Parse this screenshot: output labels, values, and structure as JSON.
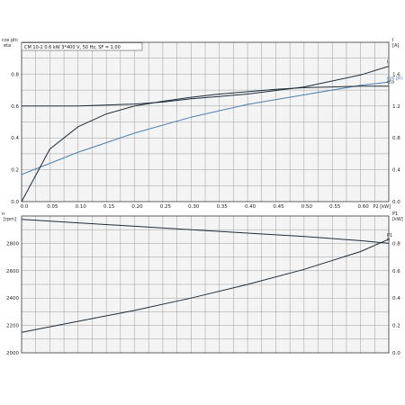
{
  "legend": "CM 10-1   0.6 kW   3*400 V, 50 Hz, SF = 1.00",
  "colors": {
    "dark": "#1f2d3a",
    "light": "#4a7fb0",
    "grid": "#9a9a9a",
    "bg": "#f4f4f4"
  },
  "chart_data": [
    {
      "type": "line",
      "xlabel": "P2 [kW]",
      "xlim": [
        0,
        0.65
      ],
      "x_ticks": [
        "0.0",
        "0.05",
        "0.10",
        "0.15",
        "0.20",
        "0.25",
        "0.30",
        "0.35",
        "0.40",
        "0.45",
        "0.50",
        "0.55",
        "0.60"
      ],
      "y_left_label": "cos phi / eta",
      "y_left_label_line1": "cos phi",
      "y_left_label_line2": "eta",
      "y_left_lim": [
        0,
        1.0
      ],
      "y_left_ticks": [
        "0.0",
        "0.2",
        "0.4",
        "0.6",
        "0.8"
      ],
      "y_right_label": "I [A]",
      "y_right_label_line1": "I",
      "y_right_label_line2": "[A]",
      "y_right_lim": [
        0,
        2.0
      ],
      "y_right_ticks": [
        "0.0",
        "0.4",
        "0.8",
        "1.2",
        "1.6"
      ],
      "grid": true,
      "series": [
        {
          "name": "I",
          "axis": "right",
          "color": "#1f2d3a",
          "x": [
            0.0,
            0.1,
            0.2,
            0.25,
            0.3,
            0.4,
            0.5,
            0.6,
            0.65
          ],
          "y": [
            1.2,
            1.2,
            1.225,
            1.25,
            1.29,
            1.35,
            1.44,
            1.59,
            1.7
          ]
        },
        {
          "name": "cos phi",
          "axis": "left",
          "color": "#4a7fb0",
          "x": [
            0.0,
            0.1,
            0.2,
            0.3,
            0.4,
            0.5,
            0.6,
            0.65
          ],
          "y": [
            0.17,
            0.31,
            0.43,
            0.53,
            0.61,
            0.67,
            0.73,
            0.75
          ]
        },
        {
          "name": "eta",
          "axis": "left",
          "color": "#1f2d3a",
          "x": [
            0.0,
            0.05,
            0.1,
            0.15,
            0.2,
            0.25,
            0.3,
            0.35,
            0.4,
            0.45,
            0.5,
            0.55,
            0.6,
            0.65
          ],
          "y": [
            0.0,
            0.33,
            0.47,
            0.55,
            0.6,
            0.63,
            0.655,
            0.675,
            0.69,
            0.705,
            0.715,
            0.72,
            0.725,
            0.725
          ]
        }
      ]
    },
    {
      "type": "line",
      "xlim": [
        0,
        0.65
      ],
      "y_left_label": "n [rpm]",
      "y_left_label_line1": "n",
      "y_left_label_line2": "[rpm]",
      "y_left_lim": [
        2000,
        3000
      ],
      "y_left_ticks": [
        "2000",
        "2200",
        "2400",
        "2600",
        "2800"
      ],
      "y_right_label": "P1 [kW]",
      "y_right_label_line1": "P1",
      "y_right_label_line2": "[kW]",
      "y_right_lim": [
        0,
        1.0
      ],
      "y_right_ticks": [
        "0.0",
        "0.2",
        "0.4",
        "0.6",
        "0.8"
      ],
      "grid": true,
      "series": [
        {
          "name": "n",
          "axis": "left",
          "color": "#1f2d3a",
          "x": [
            0.0,
            0.1,
            0.2,
            0.3,
            0.4,
            0.5,
            0.6,
            0.65
          ],
          "y": [
            2975,
            2950,
            2925,
            2900,
            2875,
            2850,
            2820,
            2800
          ]
        },
        {
          "name": "P1",
          "axis": "right",
          "color": "#1f2d3a",
          "x": [
            0.0,
            0.1,
            0.2,
            0.3,
            0.4,
            0.5,
            0.6,
            0.65
          ],
          "y": [
            0.15,
            0.23,
            0.31,
            0.4,
            0.5,
            0.61,
            0.74,
            0.83
          ]
        }
      ]
    }
  ]
}
